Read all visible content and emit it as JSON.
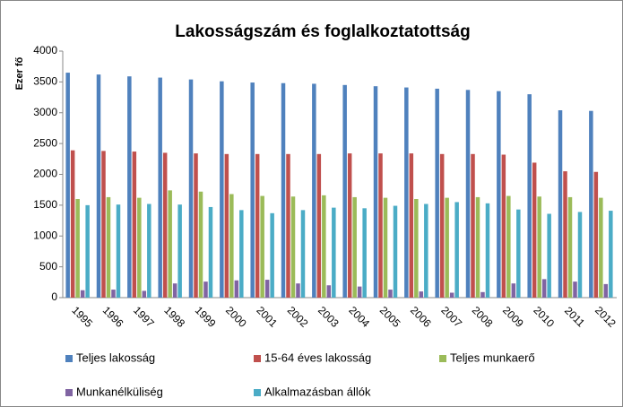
{
  "chart_data": {
    "type": "bar",
    "title": "Lakosságszám és foglalkoztatottság",
    "ylabel": "Ezer fő",
    "categories": [
      "1995",
      "1996",
      "1997",
      "1998",
      "1999",
      "2000",
      "2001",
      "2002",
      "2003",
      "2004",
      "2005",
      "2006",
      "2007",
      "2008",
      "2009",
      "2010",
      "2011",
      "2012"
    ],
    "series": [
      {
        "name": "Teljes lakosság",
        "color": "#4f81bd",
        "values": [
          3650,
          3620,
          3590,
          3570,
          3540,
          3510,
          3490,
          3480,
          3470,
          3450,
          3430,
          3410,
          3390,
          3370,
          3350,
          3300,
          3040,
          3030
        ]
      },
      {
        "name": "15-64 éves lakosság",
        "color": "#c0504d",
        "values": [
          2390,
          2380,
          2370,
          2350,
          2340,
          2330,
          2330,
          2330,
          2330,
          2340,
          2340,
          2340,
          2330,
          2330,
          2320,
          2190,
          2050,
          2040
        ]
      },
      {
        "name": "Teljes munkaerő",
        "color": "#9bbb59",
        "values": [
          1600,
          1630,
          1620,
          1740,
          1720,
          1680,
          1650,
          1640,
          1660,
          1630,
          1620,
          1600,
          1620,
          1630,
          1650,
          1640,
          1630,
          1620
        ]
      },
      {
        "name": "Munkanélküliség",
        "color": "#8064a2",
        "values": [
          120,
          130,
          110,
          230,
          260,
          280,
          290,
          230,
          200,
          180,
          130,
          100,
          80,
          90,
          230,
          300,
          260,
          220
        ]
      },
      {
        "name": "Alkalmazásban állók",
        "color": "#4bacc6",
        "values": [
          1500,
          1510,
          1520,
          1510,
          1470,
          1420,
          1370,
          1420,
          1460,
          1450,
          1490,
          1520,
          1550,
          1530,
          1430,
          1360,
          1390,
          1410
        ]
      }
    ],
    "ylim": [
      0,
      4000
    ],
    "yticks": [
      0,
      500,
      1000,
      1500,
      2000,
      2500,
      3000,
      3500,
      4000
    ],
    "grid": false
  }
}
